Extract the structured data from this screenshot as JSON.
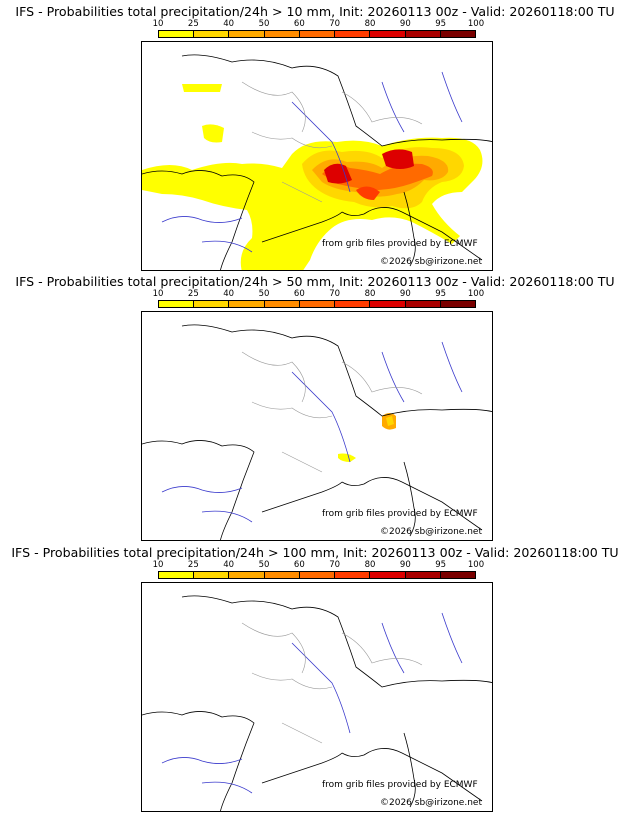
{
  "legend": {
    "ticks": [
      "10",
      "25",
      "40",
      "50",
      "60",
      "70",
      "80",
      "90",
      "95",
      "100"
    ],
    "colors": [
      "#ffff00",
      "#ffd700",
      "#ffaa00",
      "#ff8c00",
      "#ff6a00",
      "#ff3c00",
      "#dd0000",
      "#aa0000",
      "#7a0000",
      "#4d0000"
    ]
  },
  "panels": [
    {
      "title": "IFS - Probabilities total precipitation/24h > 10 mm, Init: 20260113 00z - Valid: 20260118:00 TU",
      "source": "from grib files provided by ECMWF",
      "copyright": "©2026 sb@irizone.net"
    },
    {
      "title": "IFS - Probabilities total precipitation/24h > 50 mm, Init: 20260113 00z - Valid: 20260118:00 TU",
      "source": "from grib files provided by ECMWF",
      "copyright": "©2026 sb@irizone.net"
    },
    {
      "title": "IFS - Probabilities total precipitation/24h > 100 mm, Init: 20260113 00z - Valid: 20260118:00 TU",
      "source": "from grib files provided by ECMWF",
      "copyright": "©2026 sb@irizone.net"
    }
  ]
}
